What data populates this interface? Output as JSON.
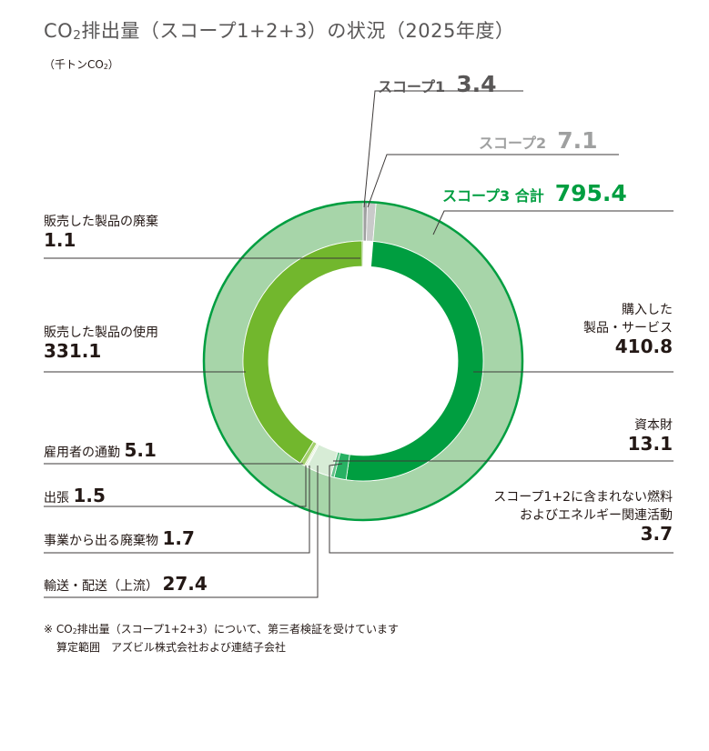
{
  "title": {
    "prefix": "CO",
    "sub": "2",
    "suffix": "排出量（スコープ1+2+3）の状況（2025年度）"
  },
  "unit": {
    "prefix": "（千トンCO",
    "sub": "2",
    "suffix": "）"
  },
  "chart_data": {
    "type": "pie",
    "outer_ring": [
      {
        "name": "スコープ1",
        "value": 3.4,
        "color": "#9fa0a0"
      },
      {
        "name": "スコープ2",
        "value": 7.1,
        "color": "#c9caca"
      },
      {
        "name": "スコープ3 合計",
        "value": 795.4,
        "color": "#a7d5a9"
      }
    ],
    "inner_ring": [
      {
        "name": "購入した製品・サービス",
        "value": 410.8,
        "color": "#009e40"
      },
      {
        "name": "資本財",
        "value": 13.1,
        "color": "#27b163"
      },
      {
        "name": "スコープ1+2に含まれない燃料およびエネルギー関連活動",
        "value": 3.7,
        "color": "#66c28a"
      },
      {
        "name": "輸送・配送（上流）",
        "value": 27.4,
        "color": "#d7ecd6"
      },
      {
        "name": "事業から出る廃棄物",
        "value": 1.7,
        "color": "#e8f3e1"
      },
      {
        "name": "出張",
        "value": 1.5,
        "color": "#c6e2a2"
      },
      {
        "name": "雇用者の通勤",
        "value": 5.1,
        "color": "#a3d06c"
      },
      {
        "name": "販売した製品の使用",
        "value": 331.1,
        "color": "#72b72d"
      },
      {
        "name": "販売した製品の廃棄",
        "value": 1.1,
        "color": "#4f9a1c"
      }
    ]
  },
  "scope_labels": {
    "s1": {
      "name": "スコープ1",
      "value": "3.4"
    },
    "s2": {
      "name": "スコープ2",
      "value": "7.1"
    },
    "s3": {
      "name": "スコープ3 合計",
      "value": "795.4"
    }
  },
  "cat_labels": {
    "disposal": {
      "name": "販売した製品の廃棄",
      "value": "1.1"
    },
    "use": {
      "name": "販売した製品の使用",
      "value": "331.1"
    },
    "purchased": {
      "name1": "購入した",
      "name2": "製品・サービス",
      "value": "410.8"
    },
    "capital": {
      "name": "資本財",
      "value": "13.1"
    },
    "fuel": {
      "name1": "スコープ1+2に含まれない燃料",
      "name2": "およびエネルギー関連活動",
      "value": "3.7"
    },
    "commute": {
      "name": "雇用者の通勤",
      "value": "5.1"
    },
    "travel": {
      "name": "出張",
      "value": "1.5"
    },
    "waste": {
      "name": "事業から出る廃棄物",
      "value": "1.7"
    },
    "transport": {
      "name": "輸送・配送（上流）",
      "value": "27.4"
    }
  },
  "notes": {
    "line1_a": "※ CO",
    "line1_sub": "2",
    "line1_b": "排出量（スコープ1+2+3）について、第三者検証を受けています",
    "line2": "算定範囲　アズビル株式会社および連結子会社"
  },
  "colors": {
    "scope1_text": "#595757",
    "scope2_text": "#9fa0a0",
    "scope3_text": "#009e40",
    "leader": "#3e3a39"
  }
}
